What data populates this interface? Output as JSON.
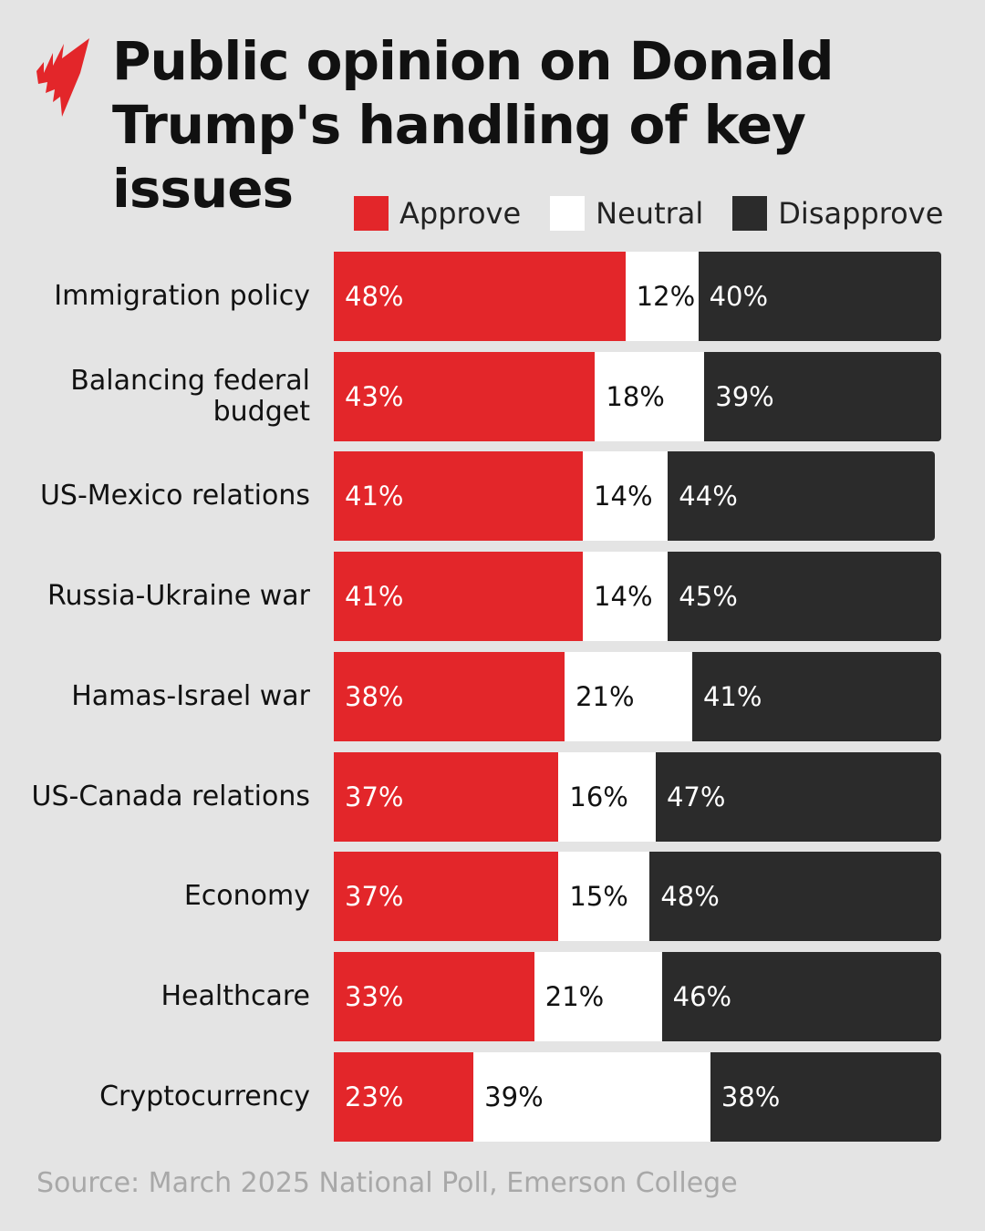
{
  "title": "Public opinion on Donald Trump's handling of key issues",
  "source": "Source: March 2025 National Poll, Emerson College",
  "logo": {
    "brand": "SBS",
    "color": "#e3262a"
  },
  "chart_data": {
    "type": "bar",
    "orientation": "horizontal",
    "stacked": true,
    "categories": [
      "Immigration policy",
      "Balancing federal budget",
      "US-Mexico relations",
      "Russia-Ukraine war",
      "Hamas-Israel war",
      "US-Canada relations",
      "Economy",
      "Healthcare",
      "Cryptocurrency"
    ],
    "series": [
      {
        "name": "Approve",
        "color": "#e3262a",
        "values": [
          48,
          43,
          41,
          41,
          38,
          37,
          37,
          33,
          23
        ]
      },
      {
        "name": "Neutral",
        "color": "#ffffff",
        "values": [
          12,
          18,
          14,
          14,
          21,
          16,
          15,
          21,
          39
        ]
      },
      {
        "name": "Disapprove",
        "color": "#2b2b2b",
        "values": [
          40,
          39,
          44,
          45,
          41,
          47,
          48,
          46,
          38
        ]
      }
    ],
    "value_suffix": "%",
    "legend_position": "top",
    "grid": false,
    "xlim": [
      0,
      100
    ]
  }
}
